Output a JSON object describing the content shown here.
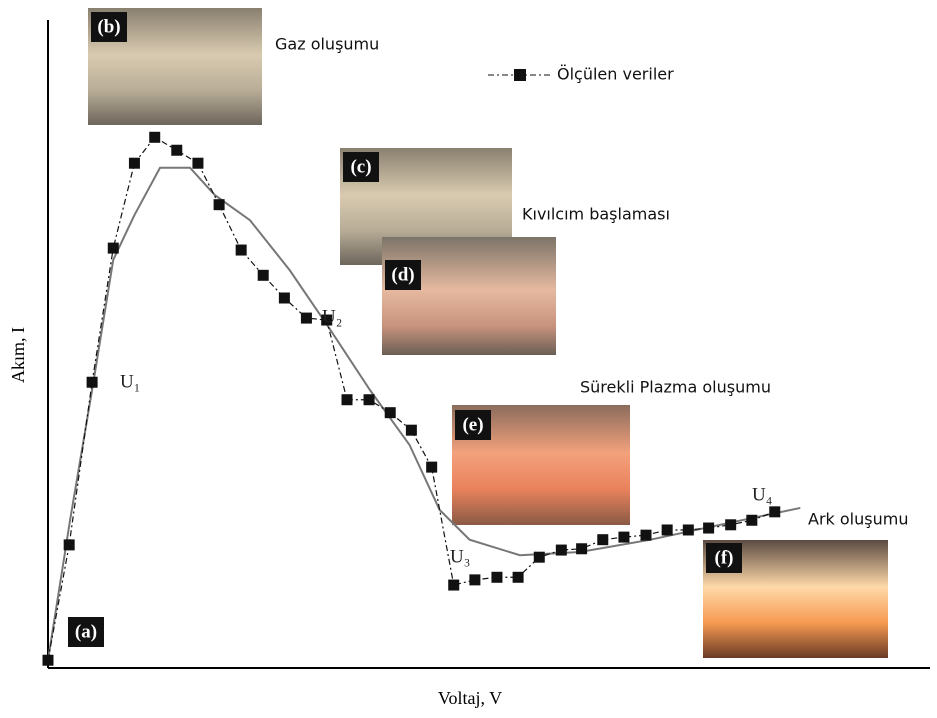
{
  "chart_data": {
    "type": "line",
    "x_label": "Voltaj, V",
    "y_label": "Akım, I",
    "xlim": [
      0,
      100
    ],
    "ylim": [
      0,
      100
    ],
    "series": [
      {
        "name": "Ölçülen veriler",
        "color": "#111111",
        "marker": "square",
        "x": [
          0,
          2.4,
          5.0,
          7.4,
          9.8,
          12.1,
          14.6,
          17.0,
          19.4,
          21.9,
          24.4,
          26.8,
          29.3,
          31.6,
          33.9,
          36.4,
          38.8,
          41.2,
          43.5,
          46.0,
          48.4,
          50.9,
          53.3,
          55.7,
          58.2,
          60.5,
          62.9,
          65.3,
          67.8,
          70.2,
          72.6,
          74.9,
          77.4,
          79.8,
          82.4
        ],
        "values": [
          1.2,
          19.0,
          44.1,
          64.8,
          77.9,
          81.9,
          79.9,
          77.9,
          71.5,
          64.5,
          60.6,
          57.1,
          54.0,
          53.7,
          41.4,
          41.4,
          39.4,
          36.7,
          31.0,
          12.8,
          13.6,
          14.0,
          14.0,
          17.1,
          18.2,
          18.4,
          19.8,
          20.2,
          20.5,
          21.3,
          21.3,
          21.6,
          22.1,
          22.8,
          24.1
        ]
      },
      {
        "color": "#777777",
        "x": [
          0,
          2.5,
          5.0,
          7.4,
          9.8,
          12.7,
          16.1,
          18.9,
          22.9,
          27.4,
          32.0,
          36.5,
          41.0,
          44.4,
          47.8,
          53.5,
          60.3,
          68.3,
          76.2,
          85.3
        ],
        "values": [
          1.2,
          22.8,
          42.9,
          63.0,
          69.9,
          77.2,
          77.2,
          73.0,
          69.1,
          61.4,
          52.2,
          42.9,
          34.4,
          24.4,
          19.8,
          17.4,
          17.9,
          19.8,
          22.1,
          24.7
        ]
      }
    ],
    "annotations": [
      "(a)",
      "(b)",
      "(c)",
      "(d)",
      "(e)",
      "(f)",
      "Gaz oluşumu",
      "Kıvılcım başlaması",
      "Sürekli Plazma oluşumu",
      "Ark oluşumu",
      "U₁",
      "U₂",
      "U₃",
      "U₄"
    ]
  }
}
